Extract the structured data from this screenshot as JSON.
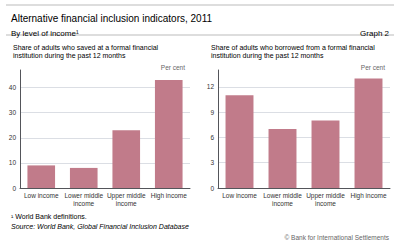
{
  "title": "Alternative financial inclusion indicators, 2011",
  "subtitle": "By level of income¹",
  "annotations": [
    "Graph 2",
    "¹ World Bank definitions.",
    "Source: World Bank, Global Financial Inclusion Database",
    "© Bank for International Settlements"
  ],
  "chart_data": [
    {
      "type": "bar",
      "title": "Share of adults who saved at a formal financial\ninstitution during the past 12 months",
      "categories": [
        "Low income",
        "Lower middle\nincome",
        "Upper middle\nincome",
        "High income"
      ],
      "values": [
        9,
        8,
        23,
        43
      ],
      "color": "#c17b8a",
      "ylabel": "Per cent",
      "ylim": [
        0,
        47
      ],
      "yticks": [
        0,
        10,
        20,
        30,
        40
      ],
      "grid": true
    },
    {
      "type": "bar",
      "title": "Share of adults who borrowed from a formal financial\ninstitution during the past 12 months",
      "categories": [
        "Low income",
        "Lower middle\nincome",
        "Upper middle\nincome",
        "High income"
      ],
      "values": [
        11,
        7,
        8,
        13
      ],
      "color": "#c17b8a",
      "ylabel": "Per cent",
      "ylim": [
        0,
        14
      ],
      "yticks": [
        0,
        3,
        6,
        9,
        12
      ],
      "grid": true
    }
  ]
}
